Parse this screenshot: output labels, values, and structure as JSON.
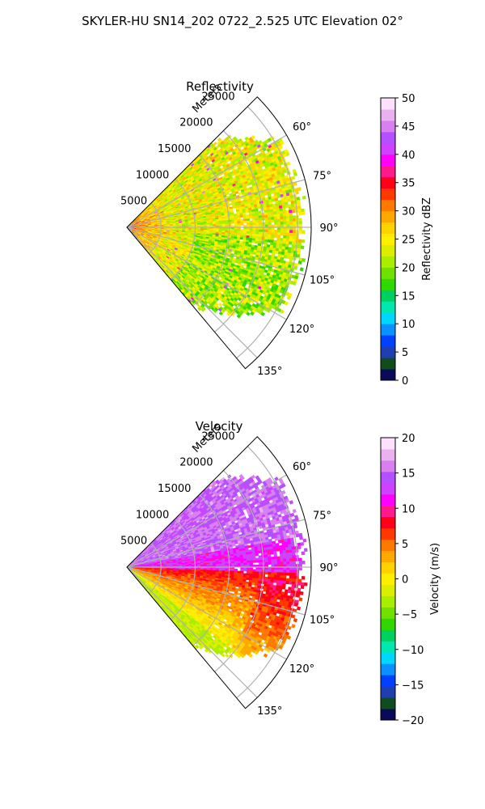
{
  "figure_title": "SKYLER-HU  SN14_202  0722_2.525 UTC Elevation 02°",
  "chart_data": [
    {
      "type": "heatmap",
      "title": "Reflectivity",
      "projection": "polar sector (PPI)",
      "theta_ticks_deg": [
        60,
        75,
        90,
        105,
        120,
        135
      ],
      "theta_range_deg": [
        45,
        140
      ],
      "r_label": "Meters",
      "r_ticks": [
        5000,
        10000,
        15000,
        20000,
        25000
      ],
      "r_max": 27000,
      "grid": true,
      "field_description": "mostly 20-30 dBZ with higher (~35-45) values near origin and scattered spots",
      "colorbar": {
        "label": "Reflectivity dBZ",
        "range": [
          0,
          50
        ],
        "ticks": [
          0,
          5,
          10,
          15,
          20,
          25,
          30,
          35,
          40,
          45,
          50
        ],
        "colors": [
          "#0a0a5a",
          "#0f4d1e",
          "#1f3fb0",
          "#0040ff",
          "#0a90ff",
          "#00d7ff",
          "#00e8b0",
          "#00d060",
          "#30d800",
          "#6fe000",
          "#a8ee00",
          "#dcee00",
          "#ffee00",
          "#ffd200",
          "#ffa800",
          "#ff7800",
          "#ff3800",
          "#ff0018",
          "#ff1a8c",
          "#ff00ff",
          "#d040ff",
          "#b450ff",
          "#d880f0",
          "#eab0f0",
          "#fde0fb"
        ]
      }
    },
    {
      "type": "heatmap",
      "title": "Velocity",
      "projection": "polar sector (PPI)",
      "theta_ticks_deg": [
        60,
        75,
        90,
        105,
        120,
        135
      ],
      "theta_range_deg": [
        45,
        140
      ],
      "r_label": "Meters",
      "r_ticks": [
        5000,
        10000,
        15000,
        20000,
        25000
      ],
      "r_max": 27000,
      "grid": true,
      "field_description": "purple/magenta (+10 to +18 m/s) for azimuths below ~92°, red/orange/yellow (+10 to 0 m/s) above, light green near 135°",
      "colorbar": {
        "label": "Velocity (m/s)",
        "range": [
          -20,
          20
        ],
        "ticks": [
          -20,
          -15,
          -10,
          -5,
          0,
          5,
          10,
          15,
          20
        ],
        "colors": [
          "#0a0a5a",
          "#0f4d1e",
          "#1f3fb0",
          "#0040ff",
          "#0a90ff",
          "#00d7ff",
          "#00e8b0",
          "#00d060",
          "#30d800",
          "#6fe000",
          "#a8ee00",
          "#dcee00",
          "#ffee00",
          "#ffd200",
          "#ffa800",
          "#ff7800",
          "#ff3800",
          "#ff0018",
          "#ff1a8c",
          "#ff00ff",
          "#d040ff",
          "#b450ff",
          "#d880f0",
          "#eab0f0",
          "#fde0fb"
        ]
      }
    }
  ]
}
